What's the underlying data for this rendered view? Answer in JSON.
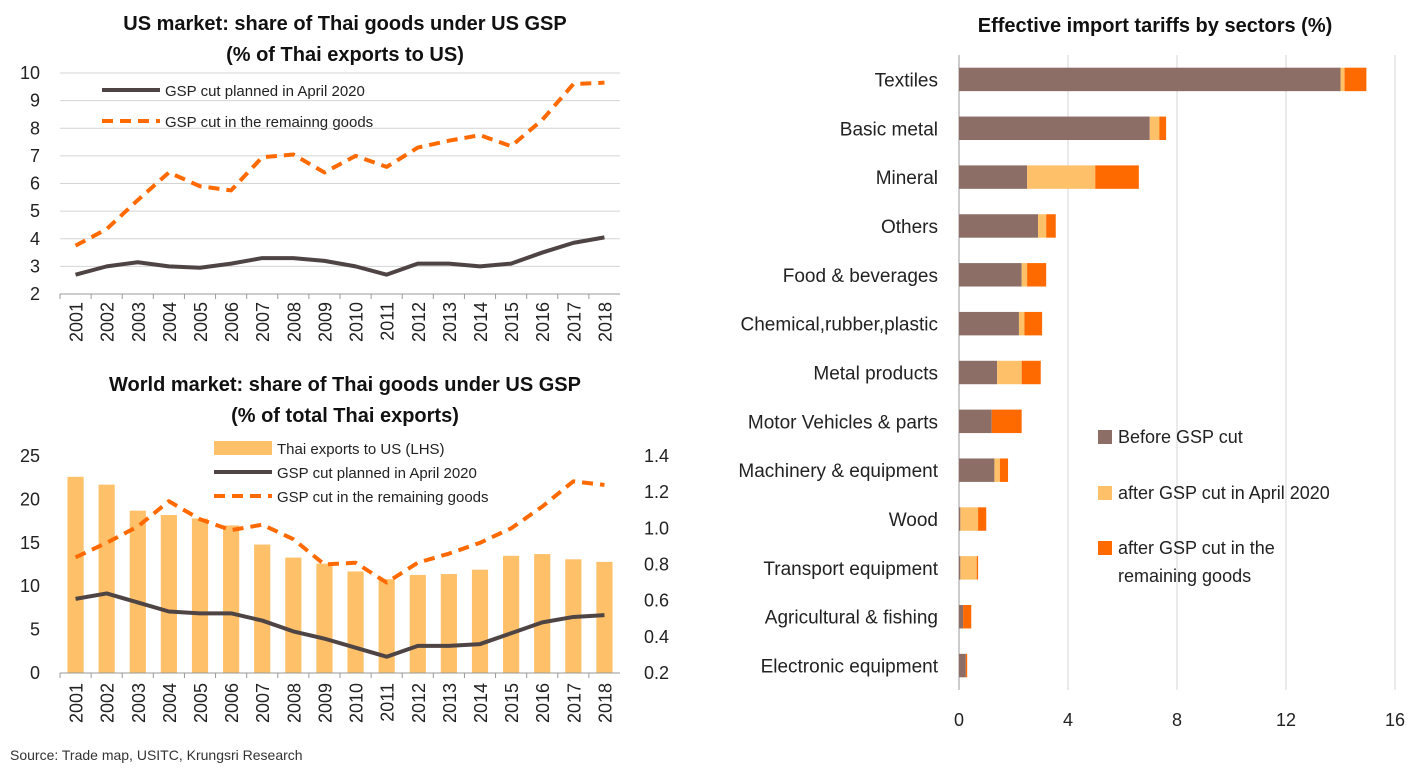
{
  "colors": {
    "dark": "#4f4444",
    "brown": "#8c6e67",
    "orange": "#ff6a00",
    "light_orange": "#ffc06a",
    "grid": "#d4d4d4"
  },
  "source": "Source: Trade map, USITC, Krungsri Research",
  "chart_data": [
    {
      "type": "line",
      "title_line1": "US market: share of Thai goods under US GSP",
      "title_line2": "(% of Thai exports to US)",
      "x": [
        "2001",
        "2002",
        "2003",
        "2004",
        "2005",
        "2006",
        "2007",
        "2008",
        "2009",
        "2010",
        "2011",
        "2012",
        "2013",
        "2014",
        "2015",
        "2016",
        "2017",
        "2018"
      ],
      "ylim": [
        2,
        10
      ],
      "yticks": [
        "2",
        "3",
        "4",
        "5",
        "6",
        "7",
        "8",
        "9",
        "10"
      ],
      "series": [
        {
          "name": "GSP cut planned in April 2020",
          "style": "solid",
          "values": [
            2.7,
            3.0,
            3.15,
            3.0,
            2.95,
            3.1,
            3.3,
            3.3,
            3.2,
            3.0,
            2.7,
            3.1,
            3.1,
            3.0,
            3.1,
            3.5,
            3.85,
            4.05
          ]
        },
        {
          "name": "GSP cut in the remainng goods",
          "style": "dashed",
          "values": [
            3.75,
            4.35,
            5.4,
            6.4,
            5.9,
            5.75,
            6.95,
            7.05,
            6.4,
            7.0,
            6.6,
            7.3,
            7.55,
            7.75,
            7.35,
            8.3,
            9.6,
            9.65
          ]
        }
      ]
    },
    {
      "type": "bar+line",
      "title_line1": "World market: share of Thai goods under US GSP",
      "title_line2": "(% of total Thai exports)",
      "x": [
        "2001",
        "2002",
        "2003",
        "2004",
        "2005",
        "2006",
        "2007",
        "2008",
        "2009",
        "2010",
        "2011",
        "2012",
        "2013",
        "2014",
        "2015",
        "2016",
        "2017",
        "2018"
      ],
      "ylim_left": [
        0,
        25
      ],
      "yticks_left": [
        "0",
        "5",
        "10",
        "15",
        "20",
        "25"
      ],
      "ylim_right": [
        0.2,
        1.4
      ],
      "yticks_right": [
        "0.2",
        "0.4",
        "0.6",
        "0.8",
        "1.0",
        "1.2",
        "1.4"
      ],
      "bars": {
        "name": "Thai exports to US (LHS)",
        "values": [
          22.6,
          21.7,
          18.7,
          18.2,
          17.8,
          17.0,
          14.8,
          13.3,
          12.6,
          11.7,
          10.8,
          11.3,
          11.4,
          11.9,
          13.5,
          13.7,
          13.1,
          12.8
        ]
      },
      "series": [
        {
          "name": "GSP cut planned in April 2020",
          "style": "solid",
          "values": [
            0.61,
            0.64,
            0.59,
            0.54,
            0.53,
            0.53,
            0.49,
            0.43,
            0.39,
            0.34,
            0.29,
            0.35,
            0.35,
            0.36,
            0.42,
            0.48,
            0.51,
            0.52
          ]
        },
        {
          "name": "GSP cut in the remaining goods",
          "style": "dashed",
          "values": [
            0.84,
            0.92,
            1.01,
            1.15,
            1.05,
            0.99,
            1.02,
            0.94,
            0.8,
            0.81,
            0.7,
            0.81,
            0.86,
            0.92,
            1.0,
            1.12,
            1.26,
            1.24
          ]
        }
      ]
    },
    {
      "type": "stacked-horizontal-bar",
      "title": "Effective import tariffs by sectors (%)",
      "categories": [
        "Textiles",
        "Basic metal",
        "Mineral",
        "Others",
        "Food & beverages",
        "Chemical,rubber,plastic ",
        "Metal products",
        "Motor Vehicles & parts",
        "Machinery & equipment ",
        "Wood",
        "Transport equipment",
        "Agricultural & fishing",
        "Electronic equipment"
      ],
      "xlim": [
        0,
        16
      ],
      "xticks": [
        "0",
        "4",
        "8",
        "12",
        "16"
      ],
      "series": [
        {
          "name": "Before GSP cut",
          "values": [
            14.0,
            7.0,
            2.5,
            2.9,
            2.3,
            2.2,
            1.4,
            1.2,
            1.3,
            0.05,
            0.05,
            0.15,
            0.25
          ]
        },
        {
          "name": "after GSP cut in April 2020",
          "values": [
            0.15,
            0.35,
            2.5,
            0.3,
            0.2,
            0.2,
            0.9,
            0.0,
            0.2,
            0.65,
            0.6,
            0.0,
            0.0
          ]
        },
        {
          "name": "after GSP cut in the remaining goods",
          "values": [
            0.8,
            0.25,
            1.6,
            0.35,
            0.7,
            0.65,
            0.7,
            1.1,
            0.3,
            0.3,
            0.05,
            0.3,
            0.05
          ]
        }
      ],
      "legend_lines": [
        "Before GSP cut",
        "after GSP cut in April 2020",
        "after GSP cut in the",
        "remaining goods"
      ]
    }
  ]
}
